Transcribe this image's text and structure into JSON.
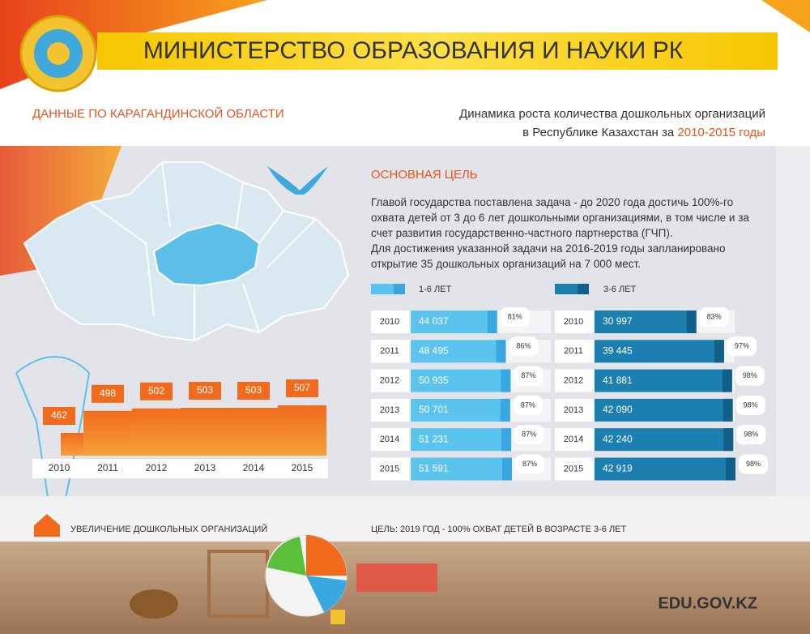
{
  "header": {
    "title": "МИНИСТЕРСТВО ОБРАЗОВАНИЯ И НАУКИ РК",
    "region": "ДАННЫЕ ПО КАРАГАНДИНСКОЙ ОБЛАСТИ",
    "subtitle_line1": "Динамика роста количества дошкольных организаций",
    "subtitle_line2": "в Республике Казахстан за",
    "subtitle_years": "2010-2015 годы"
  },
  "goal": {
    "heading": "ОСНОВНАЯ ЦЕЛЬ",
    "paragraphs": [
      "Главой государства поставлена задача - до 2020 года достичь 100%-го охвата детей от 3 до 6 лет дошкольными организациями, в том числе и за счет развития государственно-частного партнерства (ГЧП).",
      "Для достижения указанной задачи на 2016-2019 годы запланировано открытие 35 дошкольных организаций на 7 000 мест."
    ]
  },
  "chart_data": [
    {
      "type": "bar",
      "categories": [
        "2010",
        "2011",
        "2012",
        "2013",
        "2014",
        "2015"
      ],
      "values": [
        462,
        498,
        502,
        503,
        503,
        507
      ],
      "color": "#f26b1d"
    },
    {
      "type": "barh",
      "categories": [
        "2010",
        "2011",
        "2012",
        "2013",
        "2014",
        "2015"
      ],
      "series": [
        {
          "name": "1-6 ЛЕТ",
          "color": "#5bc4ee",
          "tip_color": "#3aa8e0",
          "values": [
            44037,
            48495,
            50935,
            50701,
            51231,
            51591
          ],
          "value_labels": [
            "44 037",
            "48 495",
            "50 935",
            "50 701",
            "51 231",
            "51 591"
          ]
        }
      ],
      "coverage": {
        "values": [
          81,
          86,
          87,
          87,
          87,
          87
        ],
        "value_labels": [
          "81%",
          "86%",
          "87%",
          "87%",
          "87%",
          "87%"
        ]
      }
    },
    {
      "type": "barh",
      "categories": [
        "2010",
        "2011",
        "2012",
        "2013",
        "2014",
        "2015"
      ],
      "series": [
        {
          "name": "3-6 ЛЕТ",
          "color": "#1b7fb0",
          "tip_color": "#125f8a",
          "values": [
            30997,
            39445,
            41881,
            42090,
            42240,
            42919
          ],
          "value_labels": [
            "30 997",
            "39 445",
            "41 881",
            "42 090",
            "42 240",
            "42 919"
          ]
        }
      ],
      "coverage": {
        "values": [
          83,
          97,
          98,
          98,
          98,
          98
        ],
        "value_labels": [
          "83%",
          "97%",
          "98%",
          "98%",
          "98%",
          "98%"
        ]
      }
    }
  ],
  "footer": {
    "left": "УВЕЛИЧЕНИЕ ДОШКОЛЬНЫХ ОРГАНИЗАЦИЙ",
    "right": "ЦЕЛЬ: 2019 ГОД - 100% ОХВАТ ДЕТЕЙ В ВОЗРАСТЕ 3-6 ЛЕТ",
    "site": "EDU.GOV.KZ"
  }
}
